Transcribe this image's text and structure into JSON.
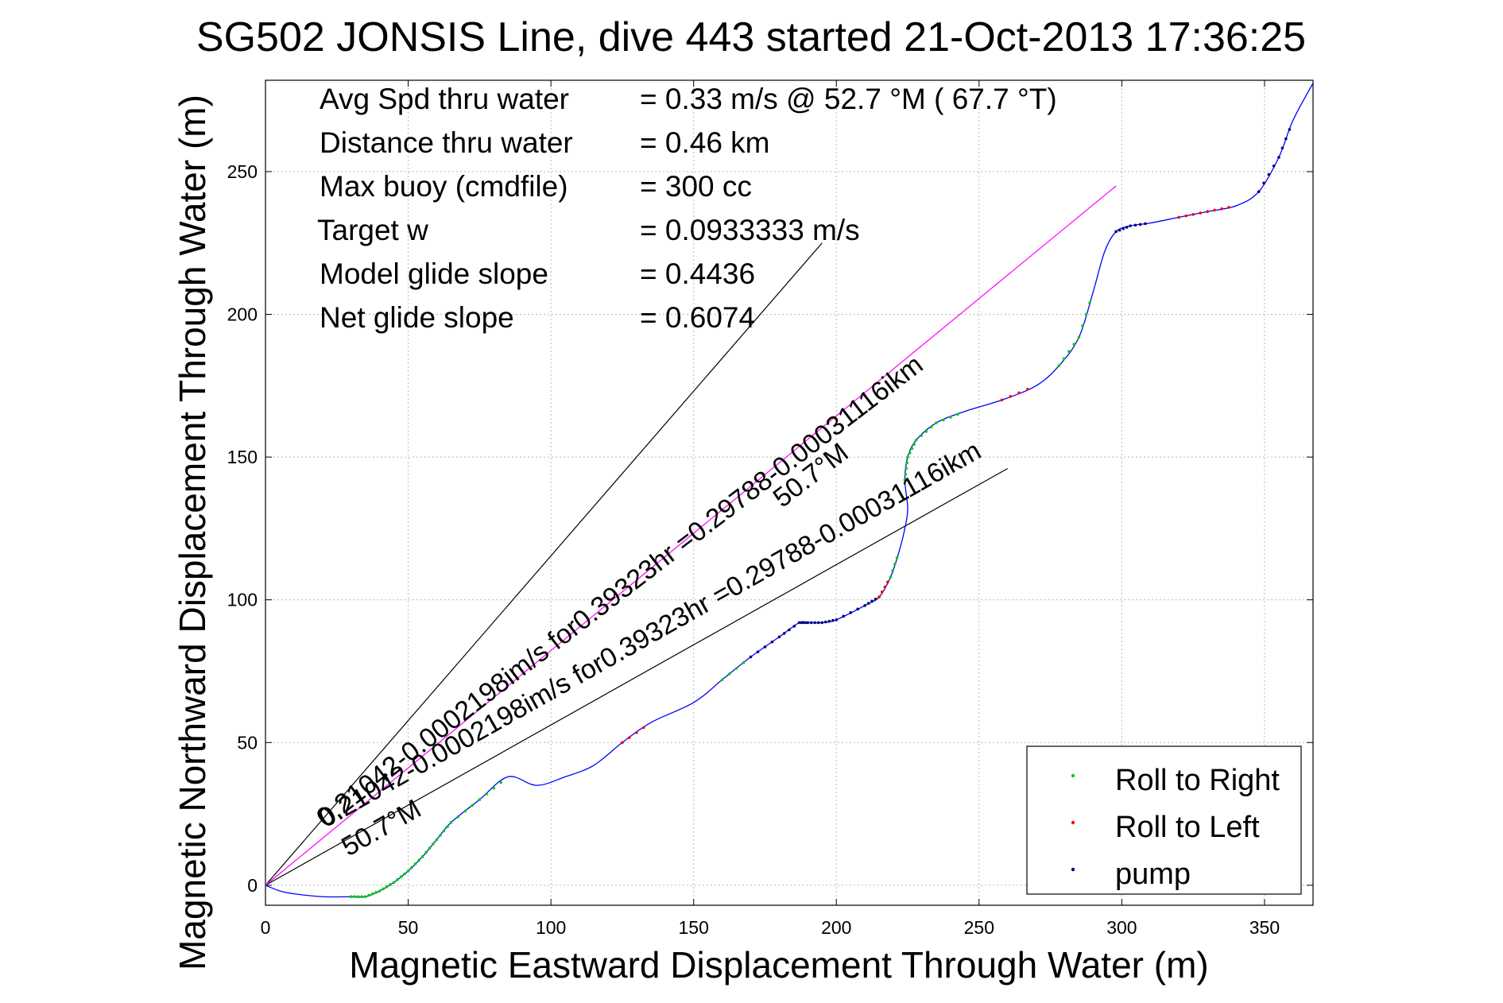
{
  "chart_data": {
    "type": "line",
    "title": "SG502 JONSIS Line, dive 443 started 21-Oct-2013 17:36:25",
    "xlabel": "Magnetic Eastward Displacement Through Water (m)",
    "ylabel": "Magnetic Northward Displacement Through Water (m)",
    "xlim": [
      0,
      367
    ],
    "ylim": [
      -7,
      282
    ],
    "xticks": [
      0,
      50,
      100,
      150,
      200,
      250,
      300,
      350
    ],
    "yticks": [
      0,
      50,
      100,
      150,
      200,
      250
    ],
    "grid": true,
    "legend_position": "bottom-right",
    "legend": [
      {
        "label": "Roll to Right",
        "color": "#00cc00"
      },
      {
        "label": "Roll to Left",
        "color": "#ff0000"
      },
      {
        "label": "pump",
        "color": "#000080"
      }
    ],
    "info_lines": [
      {
        "label": "Avg Spd thru water",
        "value": "=  0.33 m/s @  52.7 °M ( 67.7 °T)"
      },
      {
        "label": "Distance thru water",
        "value": "=  0.46 km"
      },
      {
        "label": "Max buoy (cmdfile)",
        "value": "= 300 cc"
      },
      {
        "label": "Target w",
        "value": "= 0.0933333 m/s"
      },
      {
        "label": "Model glide slope",
        "value": "= 0.4436"
      },
      {
        "label": "Net glide slope",
        "value": "= 0.6074"
      }
    ],
    "annotations": [
      {
        "text": "0.21042-0.0002198im/s for0.39323hr =0.29788-0.00031116ikm",
        "x": 21,
        "y": 20
      },
      {
        "text": "50.7°M",
        "x": 181,
        "y": 132
      },
      {
        "text": "0.21042-0.0002198im/s for0.39323hr =0.29788-0.00031116ikm",
        "x": 21,
        "y": 20
      },
      {
        "text": "50.7°M",
        "x": 29,
        "y": 10
      }
    ],
    "lines": [
      {
        "name": "",
        "color": "#000000",
        "x": [
          0,
          195
        ],
        "y": [
          0,
          225
        ]
      },
      {
        "name": "",
        "color": "#000000",
        "x": [
          0,
          260
        ],
        "y": [
          0,
          146
        ]
      },
      {
        "name": "",
        "color": "#ff00ff",
        "x": [
          0,
          298
        ],
        "y": [
          0,
          245
        ]
      }
    ],
    "series": [
      {
        "name": "",
        "color": "#0000ff",
        "x": [
          0,
          5,
          10,
          20,
          30,
          35,
          40,
          45,
          50,
          55,
          60,
          65,
          75,
          85,
          95,
          105,
          115,
          125,
          135,
          150,
          160,
          170,
          180,
          187,
          190,
          195,
          200,
          210,
          215,
          219,
          222,
          224,
          225,
          224,
          225,
          228,
          235,
          245,
          258,
          270,
          278,
          285,
          290,
          294,
          298,
          303,
          310,
          320,
          330,
          340,
          348,
          355,
          360,
          367
        ],
        "y": [
          0,
          -2,
          -3,
          -4,
          -4,
          -4,
          -2,
          1,
          5,
          10,
          16,
          22,
          30,
          38,
          35,
          38,
          42,
          50,
          57,
          64,
          72,
          80,
          87,
          92,
          92,
          92,
          93,
          98,
          101,
          108,
          117,
          125,
          132,
          142,
          150,
          156,
          162,
          166,
          170,
          175,
          182,
          192,
          208,
          222,
          229,
          231,
          232,
          234,
          236,
          238,
          243,
          255,
          268,
          281
        ]
      }
    ],
    "roll_right_segments": [
      [
        4,
        13
      ],
      [
        20,
        21
      ],
      [
        27,
        30
      ],
      [
        33,
        37
      ],
      [
        40,
        42
      ]
    ],
    "roll_left_segments": [
      [
        17,
        18
      ],
      [
        28,
        29
      ],
      [
        38,
        39
      ],
      [
        47,
        49
      ]
    ],
    "pump_segments": [
      [
        21,
        28
      ],
      [
        44,
        46
      ],
      [
        50,
        52
      ]
    ]
  }
}
